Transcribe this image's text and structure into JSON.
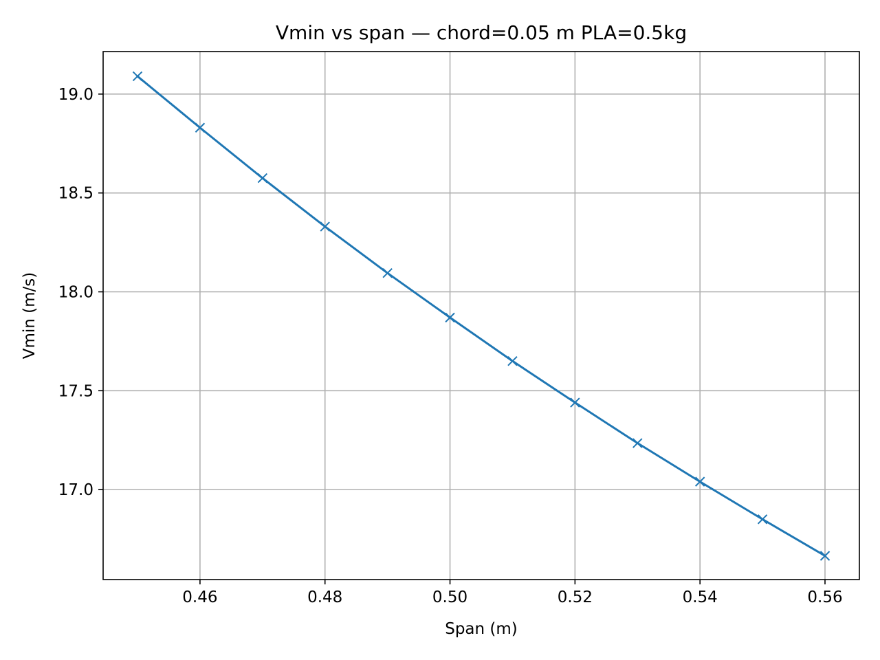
{
  "chart_data": {
    "type": "line",
    "title": "Vmin vs span — chord=0.05 m PLA=0.5kg",
    "xlabel": "Span (m)",
    "ylabel": "Vmin (m/s)",
    "xlim": [
      0.4445,
      0.5655
    ],
    "ylim": [
      16.545,
      19.215
    ],
    "xticks": [
      0.46,
      0.48,
      0.5,
      0.52,
      0.54,
      0.56
    ],
    "xtick_labels": [
      "0.46",
      "0.48",
      "0.50",
      "0.52",
      "0.54",
      "0.56"
    ],
    "yticks": [
      17.0,
      17.5,
      18.0,
      18.5,
      19.0
    ],
    "ytick_labels": [
      "17.0",
      "17.5",
      "18.0",
      "18.5",
      "19.0"
    ],
    "grid": true,
    "marker": "x",
    "color": "#1f77b4",
    "series": [
      {
        "x": [
          0.45,
          0.46,
          0.47,
          0.48,
          0.49,
          0.5,
          0.51,
          0.52,
          0.53,
          0.54,
          0.55,
          0.56
        ],
        "y": [
          19.09,
          18.83,
          18.575,
          18.33,
          18.095,
          17.87,
          17.65,
          17.44,
          17.235,
          17.04,
          16.85,
          16.665
        ]
      }
    ]
  }
}
